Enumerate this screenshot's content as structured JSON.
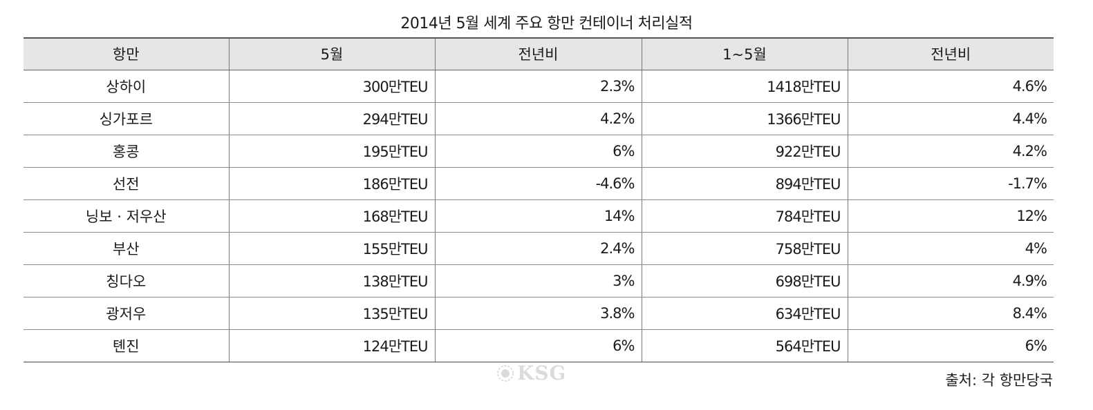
{
  "title": "2014년 5월 세계 주요 항만 컨테이너 처리실적",
  "table": {
    "headers": [
      "항만",
      "5월",
      "전년비",
      "1~5월",
      "전년비"
    ],
    "rows": [
      [
        "상하이",
        "300만TEU",
        "2.3%",
        "1418만TEU",
        "4.6%"
      ],
      [
        "싱가포르",
        "294만TEU",
        "4.2%",
        "1366만TEU",
        "4.4%"
      ],
      [
        "홍콩",
        "195만TEU",
        "6%",
        "922만TEU",
        "4.2%"
      ],
      [
        "선전",
        "186만TEU",
        "-4.6%",
        "894만TEU",
        "-1.7%"
      ],
      [
        "닝보 · 저우산",
        "168만TEU",
        "14%",
        "784만TEU",
        "12%"
      ],
      [
        "부산",
        "155만TEU",
        "2.4%",
        "758만TEU",
        "4%"
      ],
      [
        "칭다오",
        "138만TEU",
        "3%",
        "698만TEU",
        "4.9%"
      ],
      [
        "광저우",
        "135만TEU",
        "3.8%",
        "634만TEU",
        "8.4%"
      ],
      [
        "톈진",
        "124만TEU",
        "6%",
        "564만TEU",
        "6%"
      ]
    ]
  },
  "watermark": {
    "text": "KSG",
    "icon": "ksg-emblem-icon"
  },
  "source": "출처: 각 항만당국"
}
